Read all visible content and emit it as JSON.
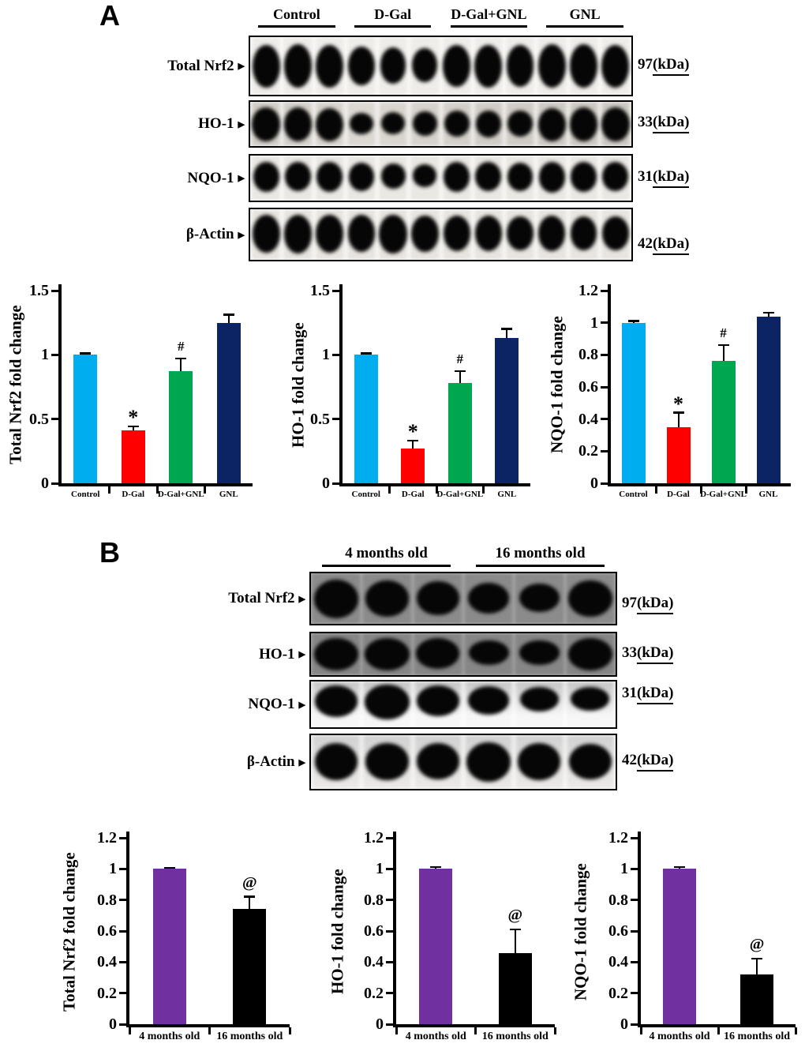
{
  "panels": {
    "a": {
      "label": "A",
      "group_headers": [
        "Control",
        "D-Gal",
        "D-Gal+GNL",
        "GNL"
      ],
      "blots": [
        {
          "protein": "Total Nrf2",
          "kda": "97",
          "kda_unit": "(kDa)",
          "band_intensities": [
            0.95,
            1,
            0.95,
            0.8,
            0.7,
            0.62,
            0.9,
            0.95,
            0.9,
            1,
            1,
            0.95
          ]
        },
        {
          "protein": "HO-1",
          "kda": "33",
          "kda_unit": "(kDa)",
          "band_intensities": [
            1,
            1,
            0.95,
            0.35,
            0.4,
            0.5,
            0.6,
            0.62,
            0.6,
            0.95,
            1,
            1
          ]
        },
        {
          "protein": "NQO-1",
          "kda": "31",
          "kda_unit": "(kDa)",
          "band_intensities": [
            0.75,
            0.72,
            0.75,
            0.68,
            0.5,
            0.4,
            0.75,
            0.72,
            0.7,
            0.8,
            0.75,
            0.72
          ]
        },
        {
          "protein": "β-Actin",
          "kda": "42",
          "kda_unit": "(kDa)",
          "band_intensities": [
            0.95,
            1,
            0.95,
            0.92,
            1,
            0.9,
            0.85,
            0.85,
            0.8,
            0.85,
            0.8,
            0.78
          ]
        }
      ]
    },
    "b": {
      "label": "B",
      "group_headers": [
        "4 months old",
        "16 months old"
      ],
      "blots": [
        {
          "protein": "Total Nrf2",
          "kda": "97",
          "kda_unit": "(kDa)",
          "band_intensities": [
            1,
            0.88,
            0.82,
            0.66,
            0.55,
            0.92
          ]
        },
        {
          "protein": "HO-1",
          "kda": "33",
          "kda_unit": "(kDa)",
          "band_intensities": [
            1,
            1,
            0.9,
            0.6,
            0.55,
            1
          ]
        },
        {
          "protein": "NQO-1",
          "kda": "31",
          "kda_unit": "(kDa)",
          "band_intensities": [
            0.85,
            1,
            0.8,
            0.7,
            0.5,
            0.45
          ]
        },
        {
          "protein": "β-Actin",
          "kda": "42",
          "kda_unit": "(kDa)",
          "band_intensities": [
            0.85,
            0.82,
            0.8,
            0.95,
            0.82,
            0.78
          ]
        }
      ]
    }
  },
  "chart_data": [
    {
      "id": "a-total-nrf2",
      "panel": "A",
      "type": "bar",
      "title": "",
      "ylabel": "Total Nrf2 fold change",
      "xlabel": "",
      "categories": [
        "Control",
        "D-Gal",
        "D-Gal+GNL",
        "GNL"
      ],
      "values": [
        1.0,
        0.41,
        0.87,
        1.25
      ],
      "errors": [
        0.01,
        0.03,
        0.1,
        0.06
      ],
      "annotations": [
        "",
        "*",
        "#",
        ""
      ],
      "colors": [
        "#00AEEF",
        "#FE0000",
        "#00A650",
        "#0D2464"
      ],
      "ylim": [
        0,
        1.5
      ],
      "ytick_values": [
        0,
        0.5,
        1,
        1.5
      ],
      "ytick_labels": [
        "0",
        "0.5",
        "1",
        "1.5"
      ],
      "grid": false,
      "legend": "none"
    },
    {
      "id": "a-ho1",
      "panel": "A",
      "type": "bar",
      "title": "",
      "ylabel": "HO-1 fold change",
      "xlabel": "",
      "categories": [
        "Control",
        "D-Gal",
        "D-Gal+GNL",
        "GNL"
      ],
      "values": [
        1.0,
        0.27,
        0.78,
        1.13
      ],
      "errors": [
        0.01,
        0.06,
        0.09,
        0.07
      ],
      "annotations": [
        "",
        "*",
        "#",
        ""
      ],
      "colors": [
        "#00AEEF",
        "#FE0000",
        "#00A650",
        "#0D2464"
      ],
      "ylim": [
        0,
        1.5
      ],
      "ytick_values": [
        0,
        0.5,
        1,
        1.5
      ],
      "ytick_labels": [
        "0",
        "0.5",
        "1",
        "1.5"
      ],
      "grid": false,
      "legend": "none"
    },
    {
      "id": "a-nqo1",
      "panel": "A",
      "type": "bar",
      "title": "",
      "ylabel": "NQO-1 fold change",
      "xlabel": "",
      "categories": [
        "Control",
        "D-Gal",
        "D-Gal+GNL",
        "GNL"
      ],
      "values": [
        1.0,
        0.35,
        0.76,
        1.04
      ],
      "errors": [
        0.01,
        0.09,
        0.1,
        0.02
      ],
      "annotations": [
        "",
        "*",
        "#",
        ""
      ],
      "colors": [
        "#00AEEF",
        "#FE0000",
        "#00A650",
        "#0D2464"
      ],
      "ylim": [
        0,
        1.2
      ],
      "ytick_values": [
        0,
        0.2,
        0.4,
        0.6,
        0.8,
        1,
        1.2
      ],
      "ytick_labels": [
        "0",
        "0.2",
        "0.4",
        "0.6",
        "0.8",
        "1",
        "1.2"
      ],
      "grid": false,
      "legend": "none"
    },
    {
      "id": "b-total-nrf2",
      "panel": "B",
      "type": "bar",
      "title": "",
      "ylabel": "Total Nrf2 fold change",
      "xlabel": "",
      "categories": [
        "4 months old",
        "16 months old"
      ],
      "values": [
        1.0,
        0.74
      ],
      "errors": [
        0.005,
        0.08
      ],
      "annotations": [
        "",
        "@"
      ],
      "colors": [
        "#7030A0",
        "#000000"
      ],
      "ylim": [
        0,
        1.2
      ],
      "ytick_values": [
        0,
        0.2,
        0.4,
        0.6,
        0.8,
        1,
        1.2
      ],
      "ytick_labels": [
        "0",
        "0.2",
        "0.4",
        "0.6",
        "0.8",
        "1",
        "1.2"
      ],
      "grid": false,
      "legend": "none"
    },
    {
      "id": "b-ho1",
      "panel": "B",
      "type": "bar",
      "title": "",
      "ylabel": "HO-1 fold change",
      "xlabel": "",
      "categories": [
        "4 months old",
        "16 months old"
      ],
      "values": [
        1.0,
        0.46
      ],
      "errors": [
        0.01,
        0.15
      ],
      "annotations": [
        "",
        "@"
      ],
      "colors": [
        "#7030A0",
        "#000000"
      ],
      "ylim": [
        0,
        1.2
      ],
      "ytick_values": [
        0,
        0.2,
        0.4,
        0.6,
        0.8,
        1,
        1.2
      ],
      "ytick_labels": [
        "0",
        "0.2",
        "0.4",
        "0.6",
        "0.8",
        "1",
        "1.2"
      ],
      "grid": false,
      "legend": "none"
    },
    {
      "id": "b-nqo1",
      "panel": "B",
      "type": "bar",
      "title": "",
      "ylabel": "NQO-1 fold change",
      "xlabel": "",
      "categories": [
        "4 months old",
        "16 months old"
      ],
      "values": [
        1.0,
        0.32
      ],
      "errors": [
        0.01,
        0.1
      ],
      "annotations": [
        "",
        "@"
      ],
      "colors": [
        "#7030A0",
        "#000000"
      ],
      "ylim": [
        0,
        1.2
      ],
      "ytick_values": [
        0,
        0.2,
        0.4,
        0.6,
        0.8,
        1,
        1.2
      ],
      "ytick_labels": [
        "0",
        "0.2",
        "0.4",
        "0.6",
        "0.8",
        "1",
        "1.2"
      ],
      "grid": false,
      "legend": "none"
    }
  ]
}
